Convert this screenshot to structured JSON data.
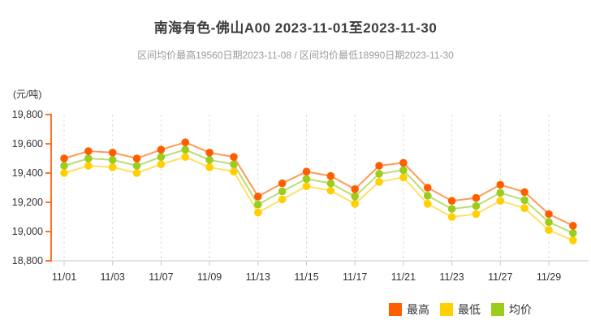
{
  "header": {
    "title": "南海有色-佛山A00 2023-11-01至2023-11-30",
    "subtitle": "区间均价最高19560日期2023-11-08 / 区间均价最低18990日期2023-11-30"
  },
  "chart_data": {
    "type": "line",
    "title": "南海有色-佛山A00 2023-11-01至2023-11-30",
    "unit_label": "(元/吨)",
    "xlabel": "",
    "ylabel": "元/吨",
    "ylim": [
      18800,
      19800
    ],
    "y_tick_step": 200,
    "y_tick_labels": [
      "19,800",
      "19,600",
      "19,400",
      "19,200",
      "19,000",
      "18,800"
    ],
    "x_tick_every": 2,
    "x_tick_labels": [
      "11/01",
      "11/03",
      "11/07",
      "11/09",
      "11/13",
      "11/15",
      "11/17",
      "11/21",
      "11/23",
      "11/27",
      "11/29"
    ],
    "grid": "vertical-dashed",
    "legend_position": "bottom-right",
    "categories": [
      "11/01",
      "11/02",
      "11/03",
      "11/06",
      "11/07",
      "11/08",
      "11/09",
      "11/10",
      "11/13",
      "11/14",
      "11/15",
      "11/16",
      "11/17",
      "11/20",
      "11/21",
      "11/22",
      "11/23",
      "11/24",
      "11/27",
      "11/28",
      "11/29",
      "11/30"
    ],
    "series": [
      {
        "name": "最高",
        "color": "#ff5e00",
        "line_color": "#ff9a55",
        "values": [
          19500,
          19550,
          19540,
          19500,
          19560,
          19610,
          19540,
          19510,
          19240,
          19330,
          19410,
          19380,
          19290,
          19450,
          19470,
          19300,
          19210,
          19230,
          19320,
          19270,
          19120,
          19040
        ]
      },
      {
        "name": "最低",
        "color": "#ffcf00",
        "line_color": "#ffe066",
        "values": [
          19400,
          19450,
          19440,
          19400,
          19460,
          19510,
          19440,
          19410,
          19130,
          19220,
          19310,
          19280,
          19190,
          19340,
          19370,
          19190,
          19100,
          19120,
          19210,
          19160,
          19010,
          18940
        ]
      },
      {
        "name": "均价",
        "color": "#9ccc1c",
        "line_color": "#bedc72",
        "values": [
          19450,
          19500,
          19490,
          19450,
          19510,
          19560,
          19490,
          19460,
          19185,
          19275,
          19360,
          19330,
          19240,
          19395,
          19420,
          19245,
          19155,
          19175,
          19265,
          19215,
          19065,
          18990
        ]
      }
    ],
    "annotations": {
      "avg_max": {
        "value": 19560,
        "date": "2023-11-08"
      },
      "avg_min": {
        "value": 18990,
        "date": "2023-11-30"
      }
    }
  },
  "axes_style": {
    "y_axis_color": "#ff7226",
    "x_axis_color": "#c8c8c8",
    "gridline_color": "#dcdcdc",
    "tick_label_color": "#333333"
  },
  "legend": {
    "items": [
      {
        "label": "最高",
        "color": "#ff5e00"
      },
      {
        "label": "最低",
        "color": "#ffcf00"
      },
      {
        "label": "均价",
        "color": "#9ccc1c"
      }
    ]
  }
}
